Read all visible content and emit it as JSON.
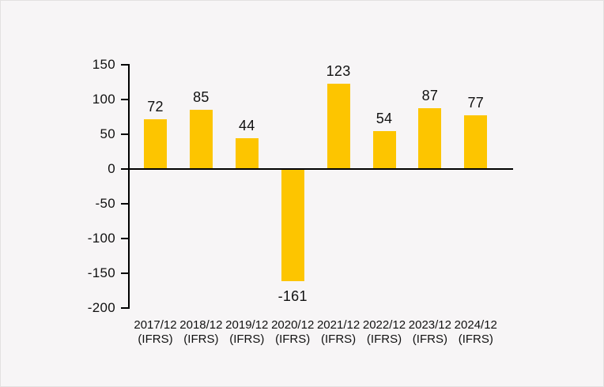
{
  "chart_data": {
    "type": "bar",
    "categories": [
      {
        "period": "2017/12",
        "standard": "(IFRS)"
      },
      {
        "period": "2018/12",
        "standard": "(IFRS)"
      },
      {
        "period": "2019/12",
        "standard": "(IFRS)"
      },
      {
        "period": "2020/12",
        "standard": "(IFRS)"
      },
      {
        "period": "2021/12",
        "standard": "(IFRS)"
      },
      {
        "period": "2022/12",
        "standard": "(IFRS)"
      },
      {
        "period": "2023/12",
        "standard": "(IFRS)"
      },
      {
        "period": "2024/12",
        "standard": "(IFRS)"
      }
    ],
    "values": [
      72,
      85,
      44,
      -161,
      123,
      54,
      87,
      77
    ],
    "y_ticks": [
      150,
      100,
      50,
      0,
      -50,
      -100,
      -150,
      -200
    ],
    "ylim": [
      -200,
      150
    ],
    "title": "",
    "xlabel": "",
    "ylabel": "",
    "grid": false,
    "legend": false,
    "bar_color": "#fdc500",
    "axis_color": "#000000",
    "text_color": "#111111",
    "background_color": "#f7f5f6"
  }
}
